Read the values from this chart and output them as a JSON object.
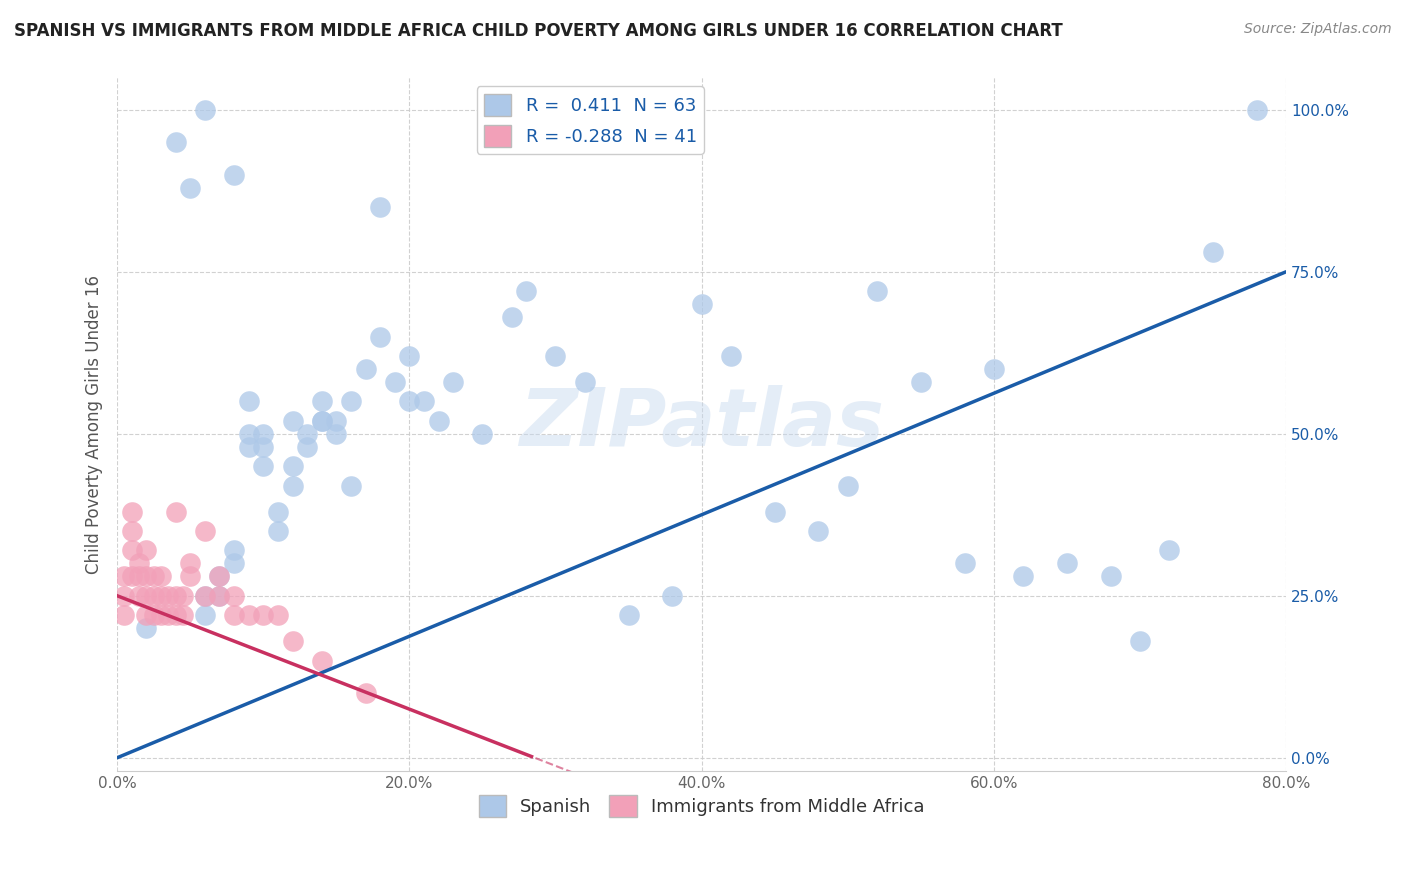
{
  "title": "SPANISH VS IMMIGRANTS FROM MIDDLE AFRICA CHILD POVERTY AMONG GIRLS UNDER 16 CORRELATION CHART",
  "source": "Source: ZipAtlas.com",
  "ylabel": "Child Poverty Among Girls Under 16",
  "xlim": [
    0.0,
    0.8
  ],
  "ylim": [
    -0.02,
    1.05
  ],
  "xticks": [
    0.0,
    0.2,
    0.4,
    0.6,
    0.8
  ],
  "xtick_labels": [
    "0.0%",
    "20.0%",
    "40.0%",
    "60.0%",
    "80.0%"
  ],
  "yticks": [
    0.0,
    0.25,
    0.5,
    0.75,
    1.0
  ],
  "ytick_labels": [
    "0.0%",
    "25.0%",
    "50.0%",
    "75.0%",
    "100.0%"
  ],
  "watermark": "ZIPatlas",
  "blue_R": 0.411,
  "blue_N": 63,
  "pink_R": -0.288,
  "pink_N": 41,
  "blue_color": "#adc8e8",
  "pink_color": "#f2a0b8",
  "blue_line_color": "#1a5ca8",
  "pink_line_color": "#c83060",
  "grid_color": "#cccccc",
  "bg_color": "#ffffff",
  "blue_x": [
    0.02,
    0.04,
    0.05,
    0.06,
    0.06,
    0.07,
    0.08,
    0.08,
    0.09,
    0.09,
    0.1,
    0.1,
    0.11,
    0.11,
    0.12,
    0.12,
    0.13,
    0.13,
    0.14,
    0.14,
    0.15,
    0.15,
    0.16,
    0.17,
    0.18,
    0.19,
    0.2,
    0.21,
    0.22,
    0.23,
    0.25,
    0.27,
    0.28,
    0.3,
    0.32,
    0.35,
    0.38,
    0.4,
    0.42,
    0.45,
    0.48,
    0.5,
    0.52,
    0.55,
    0.58,
    0.6,
    0.62,
    0.65,
    0.68,
    0.7,
    0.72,
    0.75,
    0.78,
    0.1,
    0.12,
    0.14,
    0.16,
    0.18,
    0.2,
    0.07,
    0.08,
    0.09,
    0.06
  ],
  "blue_y": [
    0.2,
    0.95,
    0.88,
    0.22,
    0.25,
    0.28,
    0.3,
    0.32,
    0.48,
    0.5,
    0.45,
    0.48,
    0.35,
    0.38,
    0.42,
    0.45,
    0.48,
    0.5,
    0.52,
    0.55,
    0.52,
    0.5,
    0.55,
    0.6,
    0.65,
    0.58,
    0.62,
    0.55,
    0.52,
    0.58,
    0.5,
    0.68,
    0.72,
    0.62,
    0.58,
    0.22,
    0.25,
    0.7,
    0.62,
    0.38,
    0.35,
    0.42,
    0.72,
    0.58,
    0.3,
    0.6,
    0.28,
    0.3,
    0.28,
    0.18,
    0.32,
    0.78,
    1.0,
    0.5,
    0.52,
    0.52,
    0.42,
    0.85,
    0.55,
    0.25,
    0.9,
    0.55,
    1.0
  ],
  "pink_x": [
    0.005,
    0.005,
    0.005,
    0.01,
    0.01,
    0.01,
    0.01,
    0.015,
    0.015,
    0.015,
    0.02,
    0.02,
    0.02,
    0.02,
    0.025,
    0.025,
    0.025,
    0.03,
    0.03,
    0.03,
    0.035,
    0.035,
    0.04,
    0.04,
    0.04,
    0.045,
    0.045,
    0.05,
    0.05,
    0.06,
    0.06,
    0.07,
    0.07,
    0.08,
    0.08,
    0.09,
    0.1,
    0.11,
    0.12,
    0.14,
    0.17
  ],
  "pink_y": [
    0.25,
    0.28,
    0.22,
    0.28,
    0.32,
    0.35,
    0.38,
    0.25,
    0.28,
    0.3,
    0.22,
    0.25,
    0.28,
    0.32,
    0.22,
    0.25,
    0.28,
    0.25,
    0.28,
    0.22,
    0.22,
    0.25,
    0.22,
    0.25,
    0.38,
    0.22,
    0.25,
    0.28,
    0.3,
    0.25,
    0.35,
    0.25,
    0.28,
    0.22,
    0.25,
    0.22,
    0.22,
    0.22,
    0.18,
    0.15,
    0.1
  ]
}
